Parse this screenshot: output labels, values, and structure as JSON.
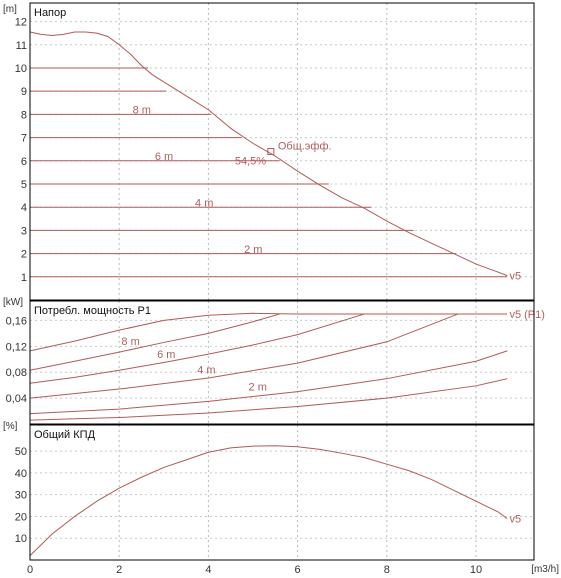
{
  "chart_data": [
    {
      "type": "line",
      "title": "Напор",
      "ylabel": "[m]",
      "xlabel": "[m3/h]",
      "xlim": [
        0,
        11.3
      ],
      "ylim": [
        0,
        12.8
      ],
      "x_ticks": [
        0,
        2,
        4,
        6,
        8,
        10
      ],
      "x_tick_labels": [
        "0",
        "2",
        "4",
        "6",
        "8",
        "10"
      ],
      "y_ticks": [
        1,
        2,
        3,
        4,
        5,
        6,
        7,
        8,
        9,
        10,
        11,
        12
      ],
      "y_tick_labels": [
        "1",
        "2",
        "3",
        "4",
        "5",
        "6",
        "7",
        "8",
        "9",
        "10",
        "11",
        "12"
      ],
      "grid": true,
      "series": [
        {
          "name": "v5",
          "x": [
            0,
            0.25,
            0.5,
            0.75,
            1.0,
            1.25,
            1.5,
            1.75,
            2.0,
            2.25,
            2.5,
            2.75,
            3.0,
            3.5,
            4.0,
            4.5,
            5.0,
            5.5,
            6.0,
            6.5,
            7.0,
            7.5,
            8.0,
            8.5,
            9.0,
            9.5,
            10.0,
            10.5,
            10.7
          ],
          "y": [
            11.55,
            11.45,
            11.4,
            11.45,
            11.55,
            11.55,
            11.5,
            11.35,
            11.0,
            10.6,
            10.1,
            9.7,
            9.4,
            8.8,
            8.2,
            7.4,
            6.75,
            6.2,
            5.55,
            4.95,
            4.4,
            3.95,
            3.4,
            2.9,
            2.45,
            2.0,
            1.55,
            1.2,
            1.05
          ]
        }
      ],
      "constant_lines": [
        {
          "y": 10,
          "x_end": 2.65
        },
        {
          "y": 9,
          "x_end": 3.05
        },
        {
          "y": 8,
          "x_end": 4.05
        },
        {
          "y": 7,
          "x_end": 4.75
        },
        {
          "y": 6,
          "x_end": 5.6
        },
        {
          "y": 5,
          "x_end": 6.7
        },
        {
          "y": 4,
          "x_end": 7.65
        },
        {
          "y": 3,
          "x_end": 8.6
        },
        {
          "y": 2,
          "x_end": 9.55
        },
        {
          "y": 1,
          "x_end": 10.7
        }
      ],
      "curve_labels": [
        {
          "text": "8 m",
          "x": 2.3,
          "y": 8.2
        },
        {
          "text": "6 m",
          "x": 2.8,
          "y": 6.2
        },
        {
          "text": "4 m",
          "x": 3.7,
          "y": 4.2
        },
        {
          "text": "2 m",
          "x": 4.8,
          "y": 2.2
        },
        {
          "text": "v5",
          "x": 10.75,
          "y": 1.05
        }
      ],
      "operating_point": {
        "x": 5.4,
        "y": 6.4,
        "label": "Общ.эфф.",
        "efficiency_label": "54,5%"
      }
    },
    {
      "type": "line",
      "title": "Потребл. мощность P1",
      "ylabel": "[kW]",
      "xlim": [
        0,
        11.3
      ],
      "ylim": [
        0,
        0.19
      ],
      "y_ticks": [
        0.04,
        0.08,
        0.12,
        0.16
      ],
      "y_tick_labels": [
        "0,04",
        "0,08",
        "0,12",
        "0,16"
      ],
      "grid": true,
      "series": [
        {
          "name": "v5 (P1)",
          "x": [
            0,
            1,
            2,
            3,
            4,
            5,
            6,
            7,
            8,
            9,
            10,
            10.7
          ],
          "y": [
            0.113,
            0.128,
            0.145,
            0.16,
            0.168,
            0.171,
            0.17,
            0.17,
            0.17,
            0.17,
            0.17,
            0.17
          ]
        },
        {
          "name": "8 m",
          "x": [
            0,
            1,
            2,
            3,
            4,
            5,
            5.6
          ],
          "y": [
            0.083,
            0.097,
            0.111,
            0.126,
            0.14,
            0.158,
            0.17
          ]
        },
        {
          "name": "6 m",
          "x": [
            0,
            1,
            2,
            3,
            4,
            5,
            6,
            7.5
          ],
          "y": [
            0.063,
            0.072,
            0.083,
            0.095,
            0.108,
            0.122,
            0.138,
            0.17
          ]
        },
        {
          "name": "4 m",
          "x": [
            0,
            2,
            4,
            6,
            8,
            9.6
          ],
          "y": [
            0.04,
            0.054,
            0.071,
            0.094,
            0.127,
            0.17
          ]
        },
        {
          "name": "2 m",
          "x": [
            0,
            2,
            4,
            6,
            8,
            10,
            10.7
          ],
          "y": [
            0.016,
            0.023,
            0.035,
            0.05,
            0.07,
            0.097,
            0.113
          ]
        },
        {
          "name": "",
          "x": [
            0,
            2,
            4,
            6,
            8,
            10,
            10.7
          ],
          "y": [
            0.006,
            0.01,
            0.017,
            0.027,
            0.04,
            0.059,
            0.07
          ]
        }
      ],
      "curve_labels": [
        {
          "text": "8 m",
          "x": 2.05,
          "y": 0.128
        },
        {
          "text": "6 m",
          "x": 2.85,
          "y": 0.108
        },
        {
          "text": "4 m",
          "x": 3.75,
          "y": 0.084
        },
        {
          "text": "2 m",
          "x": 4.9,
          "y": 0.058
        },
        {
          "text": "v5 (P1)",
          "x": 10.75,
          "y": 0.17
        }
      ]
    },
    {
      "type": "line",
      "title": "Общий КПД",
      "ylabel": "[%]",
      "xlabel": "[m3/h]",
      "xlim": [
        0,
        11.3
      ],
      "ylim": [
        0,
        62
      ],
      "x_ticks": [
        0,
        2,
        4,
        6,
        8,
        10
      ],
      "x_tick_labels": [
        "0",
        "2",
        "4",
        "6",
        "8",
        "10"
      ],
      "y_ticks": [
        10,
        20,
        30,
        40,
        50
      ],
      "y_tick_labels": [
        "10",
        "20",
        "30",
        "40",
        "50"
      ],
      "grid": true,
      "series": [
        {
          "name": "v5",
          "x": [
            0,
            0.5,
            1,
            1.5,
            2,
            2.5,
            3,
            3.5,
            4,
            4.5,
            5,
            5.5,
            6,
            6.5,
            7,
            7.5,
            8,
            8.5,
            9,
            9.5,
            10,
            10.5,
            10.7
          ],
          "y": [
            2,
            12,
            20,
            27,
            33,
            38,
            42.5,
            46,
            49.5,
            51.5,
            52.3,
            52.5,
            52,
            50.8,
            49,
            47,
            44,
            41,
            37,
            32,
            27,
            22,
            19
          ]
        }
      ],
      "curve_labels": [
        {
          "text": "v5",
          "x": 10.75,
          "y": 19
        }
      ]
    }
  ]
}
